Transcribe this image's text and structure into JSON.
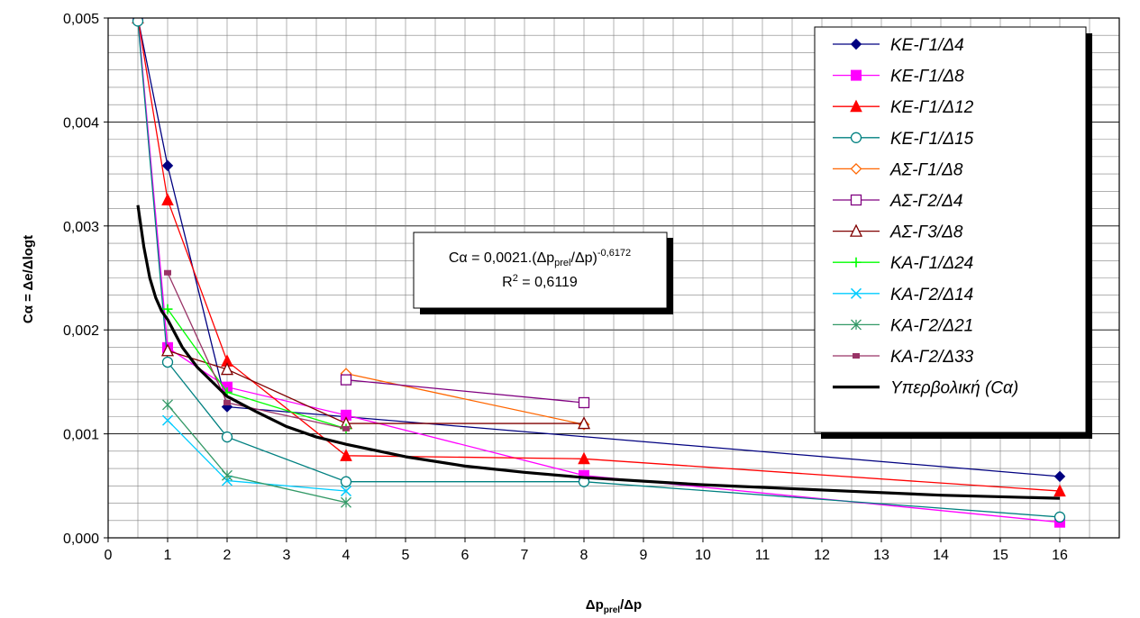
{
  "chart_data": {
    "type": "line",
    "title": "",
    "xlabel": {
      "main": "Δp",
      "sub": "prel",
      "tail": "/Δp"
    },
    "ylabel": "Cα = Δe/Δlogt",
    "x_categories": [
      "0",
      "1",
      "2",
      "3",
      "4",
      "5",
      "6",
      "7",
      "8",
      "9",
      "10",
      "11",
      "12",
      "13",
      "14",
      "15",
      "16"
    ],
    "y_ticks": [
      "0,000",
      "0,001",
      "0,002",
      "0,003",
      "0,004",
      "0,005"
    ],
    "ylim": [
      0,
      0.005
    ],
    "grid": true,
    "legend_position": "right",
    "series": [
      {
        "name": "ΚΕ-Γ1/Δ4",
        "color": "#000080",
        "marker": "diamond-filled",
        "points": [
          [
            0.5,
            0.005
          ],
          [
            1,
            0.00358
          ],
          [
            2,
            0.00126
          ],
          [
            16,
            0.00059
          ]
        ]
      },
      {
        "name": "ΚΕ-Γ1/Δ8",
        "color": "#ff00ff",
        "marker": "square-filled",
        "points": [
          [
            0.5,
            0.005
          ],
          [
            1,
            0.00183
          ],
          [
            2,
            0.00145
          ],
          [
            4,
            0.00118
          ],
          [
            8,
            0.0006
          ],
          [
            16,
            0.00015
          ]
        ]
      },
      {
        "name": "ΚΕ-Γ1/Δ12",
        "color": "#ff0000",
        "marker": "triangle-filled",
        "points": [
          [
            0.5,
            0.005
          ],
          [
            1,
            0.00325
          ],
          [
            2,
            0.0017
          ],
          [
            4,
            0.00079
          ],
          [
            8,
            0.00076
          ],
          [
            16,
            0.00045
          ]
        ]
      },
      {
        "name": "ΚΕ-Γ1/Δ15",
        "color": "#008080",
        "marker": "circle-open",
        "points": [
          [
            0.5,
            0.00497
          ],
          [
            1,
            0.00169
          ],
          [
            2,
            0.00097
          ],
          [
            4,
            0.00054
          ],
          [
            8,
            0.00054
          ],
          [
            16,
            0.0002
          ]
        ]
      },
      {
        "name": "ΑΣ-Γ1/Δ8",
        "color": "#ff6600",
        "marker": "diamond-open",
        "points": [
          [
            4,
            0.00158
          ],
          [
            8,
            0.00109
          ]
        ]
      },
      {
        "name": "ΑΣ-Γ2/Δ4",
        "color": "#800080",
        "marker": "square-open",
        "points": [
          [
            4,
            0.00152
          ],
          [
            8,
            0.0013
          ]
        ]
      },
      {
        "name": "ΑΣ-Γ3/Δ8",
        "color": "#800000",
        "marker": "triangle-open",
        "points": [
          [
            1,
            0.0018
          ],
          [
            2,
            0.00162
          ],
          [
            4,
            0.0011
          ],
          [
            8,
            0.0011
          ]
        ]
      },
      {
        "name": "ΚΑ-Γ1/Δ24",
        "color": "#00ff00",
        "marker": "plus",
        "points": [
          [
            1,
            0.0022
          ],
          [
            2,
            0.0014
          ],
          [
            4,
            0.00105
          ]
        ]
      },
      {
        "name": "ΚΑ-Γ2/Δ14",
        "color": "#00ccff",
        "marker": "x",
        "points": [
          [
            1,
            0.00113
          ],
          [
            2,
            0.00055
          ],
          [
            4,
            0.00045
          ]
        ]
      },
      {
        "name": "ΚΑ-Γ2/Δ21",
        "color": "#339966",
        "marker": "star",
        "points": [
          [
            1,
            0.00128
          ],
          [
            2,
            0.0006
          ],
          [
            4,
            0.00034
          ]
        ]
      },
      {
        "name": "ΚΑ-Γ2/Δ33",
        "color": "#993366",
        "marker": "dash",
        "points": [
          [
            1,
            0.00255
          ],
          [
            2,
            0.0013
          ],
          [
            4,
            0.00105
          ]
        ]
      },
      {
        "name": "Υπερβολική (Cα)",
        "color": "#000000",
        "marker": "none",
        "trend": true,
        "points": [
          [
            0.5,
            0.0032
          ],
          [
            0.6,
            0.0028
          ],
          [
            0.7,
            0.0025
          ],
          [
            0.8,
            0.00231
          ],
          [
            0.9,
            0.00218
          ],
          [
            1,
            0.0021
          ],
          [
            1.25,
            0.00183
          ],
          [
            1.5,
            0.00164
          ],
          [
            1.75,
            0.0015
          ],
          [
            2,
            0.00136
          ],
          [
            2.5,
            0.00121
          ],
          [
            3,
            0.00107
          ],
          [
            3.5,
            0.00097
          ],
          [
            4,
            0.0009
          ],
          [
            5,
            0.00078
          ],
          [
            6,
            0.00069
          ],
          [
            7,
            0.00063
          ],
          [
            8,
            0.00058
          ],
          [
            10,
            0.00051
          ],
          [
            12,
            0.00046
          ],
          [
            14,
            0.00041
          ],
          [
            16,
            0.00038
          ]
        ]
      }
    ],
    "annotation": {
      "line1_pre": "Cα = 0,0021.(Δp",
      "line1_sub": "prel",
      "line1_mid": "/Δp)",
      "line1_sup": "-0,6172",
      "line2_pre": "R",
      "line2_sup": "2",
      "line2_post": " = 0,6119"
    }
  }
}
